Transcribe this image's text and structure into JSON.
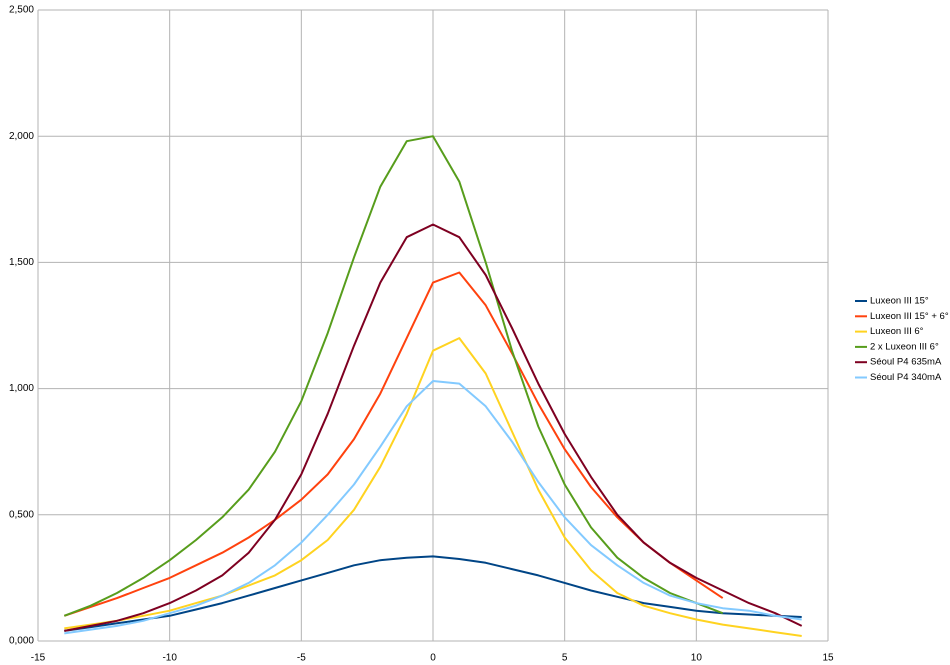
{
  "chart_data": {
    "type": "line",
    "x": [
      -14,
      -13,
      -12,
      -11,
      -10,
      -9,
      -8,
      -7,
      -6,
      -5,
      -4,
      -3,
      -2,
      -1,
      0,
      1,
      2,
      3,
      4,
      5,
      6,
      7,
      8,
      9,
      10,
      11,
      12,
      13,
      14
    ],
    "series": [
      {
        "name": "Luxeon III 15°",
        "color": "#004586",
        "values": [
          0.04,
          0.055,
          0.07,
          0.085,
          0.1,
          0.125,
          0.15,
          0.18,
          0.21,
          0.24,
          0.27,
          0.3,
          0.32,
          0.33,
          0.335,
          0.325,
          0.31,
          0.285,
          0.26,
          0.23,
          0.2,
          0.175,
          0.15,
          0.135,
          0.12,
          0.11,
          0.105,
          0.1,
          0.095
        ]
      },
      {
        "name": "Luxeon III 15° + 6°",
        "color": "#ff420e",
        "values": [
          0.1,
          0.135,
          0.17,
          0.21,
          0.25,
          0.3,
          0.35,
          0.41,
          0.48,
          0.56,
          0.66,
          0.8,
          0.98,
          1.2,
          1.42,
          1.46,
          1.33,
          1.14,
          0.94,
          0.76,
          0.61,
          0.49,
          0.39,
          0.31,
          0.24,
          0.17,
          null,
          null,
          null
        ]
      },
      {
        "name": "Luxeon III 6°",
        "color": "#ffd320",
        "values": [
          0.05,
          0.065,
          0.08,
          0.1,
          0.12,
          0.15,
          0.18,
          0.22,
          0.26,
          0.32,
          0.4,
          0.52,
          0.69,
          0.9,
          1.15,
          1.2,
          1.06,
          0.83,
          0.6,
          0.41,
          0.28,
          0.19,
          0.14,
          0.11,
          0.085,
          0.065,
          0.05,
          0.035,
          0.02
        ]
      },
      {
        "name": "2 x Luxeon III 6°",
        "color": "#579d1c",
        "values": [
          0.1,
          0.14,
          0.19,
          0.25,
          0.32,
          0.4,
          0.49,
          0.6,
          0.75,
          0.95,
          1.22,
          1.52,
          1.8,
          1.98,
          2.0,
          1.82,
          1.5,
          1.15,
          0.85,
          0.62,
          0.45,
          0.33,
          0.25,
          0.19,
          0.15,
          0.11,
          null,
          null,
          null
        ]
      },
      {
        "name": "Séoul P4 635mA",
        "color": "#7e0021",
        "values": [
          0.04,
          0.06,
          0.08,
          0.11,
          0.15,
          0.2,
          0.26,
          0.35,
          0.48,
          0.66,
          0.9,
          1.17,
          1.42,
          1.6,
          1.65,
          1.6,
          1.45,
          1.24,
          1.02,
          0.82,
          0.65,
          0.5,
          0.39,
          0.31,
          0.25,
          0.2,
          0.15,
          0.11,
          0.06
        ]
      },
      {
        "name": "Séoul P4 340mA",
        "color": "#83caff",
        "values": [
          0.03,
          0.045,
          0.06,
          0.08,
          0.11,
          0.14,
          0.18,
          0.23,
          0.3,
          0.39,
          0.5,
          0.62,
          0.77,
          0.93,
          1.03,
          1.02,
          0.93,
          0.79,
          0.63,
          0.49,
          0.38,
          0.3,
          0.23,
          0.18,
          0.15,
          0.13,
          0.12,
          0.1,
          0.085
        ]
      }
    ],
    "xlim": [
      -15,
      15
    ],
    "xticks": [
      -15,
      -10,
      -5,
      0,
      5,
      10,
      15
    ],
    "ylim": [
      0,
      2.5
    ],
    "yticks": [
      {
        "value": 0,
        "label": "0,000"
      },
      {
        "value": 0.5,
        "label": "0,500"
      },
      {
        "value": 1,
        "label": "1,000"
      },
      {
        "value": 1.5,
        "label": "1,500"
      },
      {
        "value": 2,
        "label": "2,000"
      },
      {
        "value": 2.5,
        "label": "2,500"
      }
    ],
    "grid": true,
    "legend": "right"
  }
}
